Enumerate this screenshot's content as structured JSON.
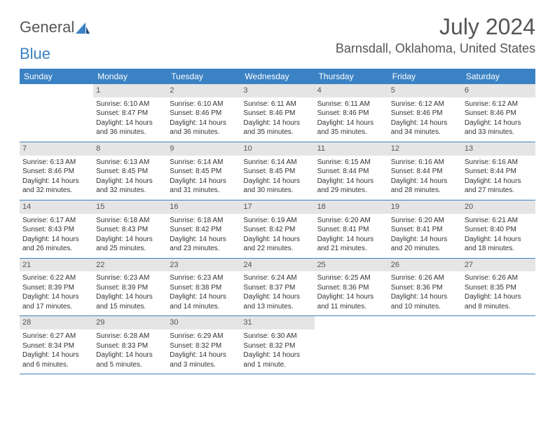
{
  "logo": {
    "text1": "General",
    "text2": "Blue"
  },
  "title": {
    "month": "July 2024",
    "location": "Barnsdall, Oklahoma, United States"
  },
  "colors": {
    "accent": "#3b82c4",
    "daybar": "#e5e5e5",
    "text": "#333333",
    "bg": "#ffffff"
  },
  "dayHeaders": [
    "Sunday",
    "Monday",
    "Tuesday",
    "Wednesday",
    "Thursday",
    "Friday",
    "Saturday"
  ],
  "weeks": [
    [
      null,
      {
        "n": "1",
        "sr": "Sunrise: 6:10 AM",
        "ss": "Sunset: 8:47 PM",
        "d1": "Daylight: 14 hours",
        "d2": "and 36 minutes."
      },
      {
        "n": "2",
        "sr": "Sunrise: 6:10 AM",
        "ss": "Sunset: 8:46 PM",
        "d1": "Daylight: 14 hours",
        "d2": "and 36 minutes."
      },
      {
        "n": "3",
        "sr": "Sunrise: 6:11 AM",
        "ss": "Sunset: 8:46 PM",
        "d1": "Daylight: 14 hours",
        "d2": "and 35 minutes."
      },
      {
        "n": "4",
        "sr": "Sunrise: 6:11 AM",
        "ss": "Sunset: 8:46 PM",
        "d1": "Daylight: 14 hours",
        "d2": "and 35 minutes."
      },
      {
        "n": "5",
        "sr": "Sunrise: 6:12 AM",
        "ss": "Sunset: 8:46 PM",
        "d1": "Daylight: 14 hours",
        "d2": "and 34 minutes."
      },
      {
        "n": "6",
        "sr": "Sunrise: 6:12 AM",
        "ss": "Sunset: 8:46 PM",
        "d1": "Daylight: 14 hours",
        "d2": "and 33 minutes."
      }
    ],
    [
      {
        "n": "7",
        "sr": "Sunrise: 6:13 AM",
        "ss": "Sunset: 8:46 PM",
        "d1": "Daylight: 14 hours",
        "d2": "and 32 minutes."
      },
      {
        "n": "8",
        "sr": "Sunrise: 6:13 AM",
        "ss": "Sunset: 8:45 PM",
        "d1": "Daylight: 14 hours",
        "d2": "and 32 minutes."
      },
      {
        "n": "9",
        "sr": "Sunrise: 6:14 AM",
        "ss": "Sunset: 8:45 PM",
        "d1": "Daylight: 14 hours",
        "d2": "and 31 minutes."
      },
      {
        "n": "10",
        "sr": "Sunrise: 6:14 AM",
        "ss": "Sunset: 8:45 PM",
        "d1": "Daylight: 14 hours",
        "d2": "and 30 minutes."
      },
      {
        "n": "11",
        "sr": "Sunrise: 6:15 AM",
        "ss": "Sunset: 8:44 PM",
        "d1": "Daylight: 14 hours",
        "d2": "and 29 minutes."
      },
      {
        "n": "12",
        "sr": "Sunrise: 6:16 AM",
        "ss": "Sunset: 8:44 PM",
        "d1": "Daylight: 14 hours",
        "d2": "and 28 minutes."
      },
      {
        "n": "13",
        "sr": "Sunrise: 6:16 AM",
        "ss": "Sunset: 8:44 PM",
        "d1": "Daylight: 14 hours",
        "d2": "and 27 minutes."
      }
    ],
    [
      {
        "n": "14",
        "sr": "Sunrise: 6:17 AM",
        "ss": "Sunset: 8:43 PM",
        "d1": "Daylight: 14 hours",
        "d2": "and 26 minutes."
      },
      {
        "n": "15",
        "sr": "Sunrise: 6:18 AM",
        "ss": "Sunset: 8:43 PM",
        "d1": "Daylight: 14 hours",
        "d2": "and 25 minutes."
      },
      {
        "n": "16",
        "sr": "Sunrise: 6:18 AM",
        "ss": "Sunset: 8:42 PM",
        "d1": "Daylight: 14 hours",
        "d2": "and 23 minutes."
      },
      {
        "n": "17",
        "sr": "Sunrise: 6:19 AM",
        "ss": "Sunset: 8:42 PM",
        "d1": "Daylight: 14 hours",
        "d2": "and 22 minutes."
      },
      {
        "n": "18",
        "sr": "Sunrise: 6:20 AM",
        "ss": "Sunset: 8:41 PM",
        "d1": "Daylight: 14 hours",
        "d2": "and 21 minutes."
      },
      {
        "n": "19",
        "sr": "Sunrise: 6:20 AM",
        "ss": "Sunset: 8:41 PM",
        "d1": "Daylight: 14 hours",
        "d2": "and 20 minutes."
      },
      {
        "n": "20",
        "sr": "Sunrise: 6:21 AM",
        "ss": "Sunset: 8:40 PM",
        "d1": "Daylight: 14 hours",
        "d2": "and 18 minutes."
      }
    ],
    [
      {
        "n": "21",
        "sr": "Sunrise: 6:22 AM",
        "ss": "Sunset: 8:39 PM",
        "d1": "Daylight: 14 hours",
        "d2": "and 17 minutes."
      },
      {
        "n": "22",
        "sr": "Sunrise: 6:23 AM",
        "ss": "Sunset: 8:39 PM",
        "d1": "Daylight: 14 hours",
        "d2": "and 15 minutes."
      },
      {
        "n": "23",
        "sr": "Sunrise: 6:23 AM",
        "ss": "Sunset: 8:38 PM",
        "d1": "Daylight: 14 hours",
        "d2": "and 14 minutes."
      },
      {
        "n": "24",
        "sr": "Sunrise: 6:24 AM",
        "ss": "Sunset: 8:37 PM",
        "d1": "Daylight: 14 hours",
        "d2": "and 13 minutes."
      },
      {
        "n": "25",
        "sr": "Sunrise: 6:25 AM",
        "ss": "Sunset: 8:36 PM",
        "d1": "Daylight: 14 hours",
        "d2": "and 11 minutes."
      },
      {
        "n": "26",
        "sr": "Sunrise: 6:26 AM",
        "ss": "Sunset: 8:36 PM",
        "d1": "Daylight: 14 hours",
        "d2": "and 10 minutes."
      },
      {
        "n": "27",
        "sr": "Sunrise: 6:26 AM",
        "ss": "Sunset: 8:35 PM",
        "d1": "Daylight: 14 hours",
        "d2": "and 8 minutes."
      }
    ],
    [
      {
        "n": "28",
        "sr": "Sunrise: 6:27 AM",
        "ss": "Sunset: 8:34 PM",
        "d1": "Daylight: 14 hours",
        "d2": "and 6 minutes."
      },
      {
        "n": "29",
        "sr": "Sunrise: 6:28 AM",
        "ss": "Sunset: 8:33 PM",
        "d1": "Daylight: 14 hours",
        "d2": "and 5 minutes."
      },
      {
        "n": "30",
        "sr": "Sunrise: 6:29 AM",
        "ss": "Sunset: 8:32 PM",
        "d1": "Daylight: 14 hours",
        "d2": "and 3 minutes."
      },
      {
        "n": "31",
        "sr": "Sunrise: 6:30 AM",
        "ss": "Sunset: 8:32 PM",
        "d1": "Daylight: 14 hours",
        "d2": "and 1 minute."
      },
      null,
      null,
      null
    ]
  ]
}
